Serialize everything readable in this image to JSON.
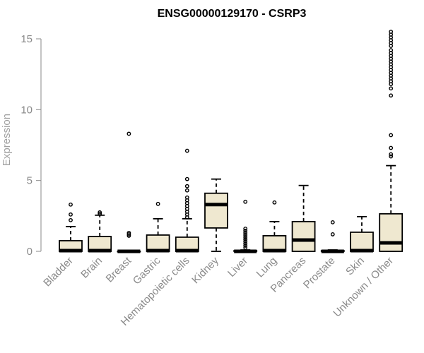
{
  "chart_data": {
    "type": "boxplot",
    "title": "ENSG00000129170 - CSRP3",
    "xlabel": "",
    "ylabel": "Expression",
    "ylim": [
      0,
      15
    ],
    "yticks": [
      0,
      5,
      10,
      15
    ],
    "grid": false,
    "legend": "none",
    "box_fill": "#efe8d0",
    "categories": [
      "Bladder",
      "Brain",
      "Breast",
      "Gastric",
      "Hematopoietic cells",
      "Kidney",
      "Liver",
      "Lung",
      "Pancreas",
      "Prostate",
      "Skin",
      "Unknown / Other"
    ],
    "boxes": [
      {
        "min": 0,
        "q1": 0,
        "median": 0.05,
        "q3": 0.75,
        "max": 1.75,
        "outliers": [
          2.2,
          2.6,
          3.3
        ]
      },
      {
        "min": 0,
        "q1": 0,
        "median": 0.05,
        "q3": 1.05,
        "max": 2.55,
        "outliers": [
          2.65,
          2.75
        ]
      },
      {
        "min": 0,
        "q1": 0,
        "median": 0.0,
        "q3": 0.0,
        "max": 0.0,
        "outliers": [
          1.1,
          1.2,
          1.3,
          8.3
        ]
      },
      {
        "min": 0,
        "q1": 0,
        "median": 0.05,
        "q3": 1.15,
        "max": 2.3,
        "outliers": [
          3.35
        ]
      },
      {
        "min": 0,
        "q1": 0,
        "median": 0.05,
        "q3": 1.0,
        "max": 2.3,
        "outliers": [
          2.4,
          2.6,
          2.8,
          3.0,
          3.2,
          3.4,
          3.6,
          3.8,
          4.3,
          4.6,
          5.1,
          7.1
        ]
      },
      {
        "min": 0,
        "q1": 1.65,
        "median": 3.3,
        "q3": 4.1,
        "max": 5.1,
        "outliers": []
      },
      {
        "min": 0,
        "q1": 0,
        "median": 0.0,
        "q3": 0.05,
        "max": 0.1,
        "outliers": [
          0.25,
          0.4,
          0.55,
          0.7,
          0.85,
          1.0,
          1.15,
          1.3,
          1.45,
          1.6,
          3.5
        ]
      },
      {
        "min": 0,
        "q1": 0,
        "median": 0.05,
        "q3": 1.1,
        "max": 2.1,
        "outliers": [
          3.45
        ]
      },
      {
        "min": 0,
        "q1": 0,
        "median": 0.8,
        "q3": 2.1,
        "max": 4.65,
        "outliers": []
      },
      {
        "min": 0,
        "q1": 0,
        "median": 0.0,
        "q3": 0.05,
        "max": 0.1,
        "outliers": [
          1.2,
          2.05
        ]
      },
      {
        "min": 0,
        "q1": 0,
        "median": 0.05,
        "q3": 1.35,
        "max": 2.45,
        "outliers": []
      },
      {
        "min": 0,
        "q1": 0,
        "median": 0.6,
        "q3": 2.65,
        "max": 6.05,
        "outliers": [
          6.7,
          6.85,
          7.3,
          8.2,
          11.0,
          11.5,
          11.8,
          12.0,
          12.2,
          12.4,
          12.6,
          12.8,
          13.0,
          13.2,
          13.4,
          13.6,
          13.8,
          14.0,
          14.2,
          14.5,
          14.7,
          14.9,
          15.1,
          15.3,
          15.5
        ]
      }
    ]
  }
}
